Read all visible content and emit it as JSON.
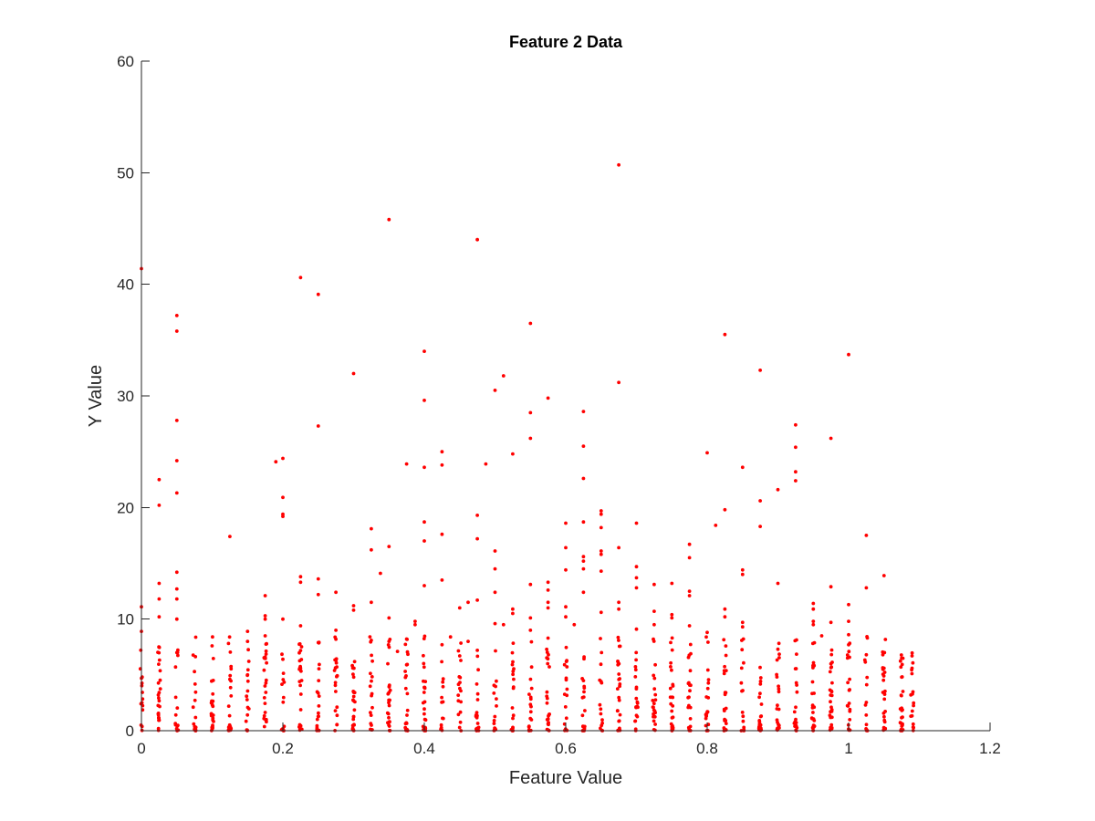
{
  "chart_data": {
    "type": "scatter",
    "title": "Feature 2 Data",
    "xlabel": "Feature Value",
    "ylabel": "Y Value",
    "xlim": [
      0,
      1.2
    ],
    "ylim": [
      0,
      60
    ],
    "xticks": [
      "0",
      "0.2",
      "0.4",
      "0.6",
      "0.8",
      "1",
      "1.2"
    ],
    "yticks": [
      "0",
      "10",
      "20",
      "30",
      "40",
      "50",
      "60"
    ],
    "grid": false,
    "legend": "none",
    "marker_color": "#ff0000",
    "x_columns": [
      0,
      0.025,
      0.05,
      0.075,
      0.1,
      0.125,
      0.15,
      0.175,
      0.2,
      0.225,
      0.25,
      0.275,
      0.3,
      0.325,
      0.35,
      0.375,
      0.4,
      0.425,
      0.45,
      0.475,
      0.5,
      0.525,
      0.55,
      0.575,
      0.6,
      0.625,
      0.65,
      0.675,
      0.7,
      0.725,
      0.75,
      0.775,
      0.8,
      0.825,
      0.85,
      0.875,
      0.9,
      0.925,
      0.95,
      0.975,
      1.0,
      1.025,
      1.05,
      1.075,
      1.09
    ],
    "points": [
      {
        "x": 0,
        "y": 41.4
      },
      {
        "x": 0,
        "y": 11.1
      },
      {
        "x": 0,
        "y": 8.9
      },
      {
        "x": 0,
        "y": 4.7
      },
      {
        "x": 0.025,
        "y": 22.5
      },
      {
        "x": 0.025,
        "y": 20.2
      },
      {
        "x": 0.025,
        "y": 13.2
      },
      {
        "x": 0.025,
        "y": 11.8
      },
      {
        "x": 0.025,
        "y": 10.2
      },
      {
        "x": 0.05,
        "y": 37.2
      },
      {
        "x": 0.05,
        "y": 35.8
      },
      {
        "x": 0.05,
        "y": 27.8
      },
      {
        "x": 0.05,
        "y": 24.2
      },
      {
        "x": 0.05,
        "y": 21.3
      },
      {
        "x": 0.05,
        "y": 14.2
      },
      {
        "x": 0.05,
        "y": 12.7
      },
      {
        "x": 0.05,
        "y": 11.8
      },
      {
        "x": 0.05,
        "y": 10.0
      },
      {
        "x": 0.05,
        "y": 7.0
      },
      {
        "x": 0.075,
        "y": 5.3
      },
      {
        "x": 0.1,
        "y": 2.6
      },
      {
        "x": 0.125,
        "y": 17.4
      },
      {
        "x": 0.125,
        "y": 4.6
      },
      {
        "x": 0.15,
        "y": 8.9
      },
      {
        "x": 0.15,
        "y": 8.0
      },
      {
        "x": 0.15,
        "y": 5.0
      },
      {
        "x": 0.175,
        "y": 12.1
      },
      {
        "x": 0.175,
        "y": 10.3
      },
      {
        "x": 0.175,
        "y": 10.0
      },
      {
        "x": 0.175,
        "y": 8.5
      },
      {
        "x": 0.175,
        "y": 6.6
      },
      {
        "x": 0.19,
        "y": 24.1
      },
      {
        "x": 0.2,
        "y": 24.4
      },
      {
        "x": 0.2,
        "y": 20.9
      },
      {
        "x": 0.2,
        "y": 19.4
      },
      {
        "x": 0.2,
        "y": 19.2
      },
      {
        "x": 0.2,
        "y": 10.0
      },
      {
        "x": 0.2,
        "y": 6.4
      },
      {
        "x": 0.225,
        "y": 40.6
      },
      {
        "x": 0.225,
        "y": 13.8
      },
      {
        "x": 0.225,
        "y": 13.3
      },
      {
        "x": 0.225,
        "y": 9.4
      },
      {
        "x": 0.225,
        "y": 5.6
      },
      {
        "x": 0.25,
        "y": 39.1
      },
      {
        "x": 0.25,
        "y": 27.3
      },
      {
        "x": 0.25,
        "y": 13.6
      },
      {
        "x": 0.25,
        "y": 12.2
      },
      {
        "x": 0.25,
        "y": 7.9
      },
      {
        "x": 0.275,
        "y": 12.4
      },
      {
        "x": 0.275,
        "y": 9.0
      },
      {
        "x": 0.275,
        "y": 8.2
      },
      {
        "x": 0.275,
        "y": 6.3
      },
      {
        "x": 0.3,
        "y": 32.0
      },
      {
        "x": 0.3,
        "y": 11.2
      },
      {
        "x": 0.3,
        "y": 10.8
      },
      {
        "x": 0.3,
        "y": 5.6
      },
      {
        "x": 0.325,
        "y": 18.1
      },
      {
        "x": 0.325,
        "y": 16.2
      },
      {
        "x": 0.325,
        "y": 11.5
      },
      {
        "x": 0.325,
        "y": 8.1
      },
      {
        "x": 0.338,
        "y": 14.1
      },
      {
        "x": 0.35,
        "y": 45.8
      },
      {
        "x": 0.35,
        "y": 16.5
      },
      {
        "x": 0.35,
        "y": 10.1
      },
      {
        "x": 0.35,
        "y": 8.0
      },
      {
        "x": 0.362,
        "y": 7.1
      },
      {
        "x": 0.375,
        "y": 23.9
      },
      {
        "x": 0.375,
        "y": 5.9
      },
      {
        "x": 0.387,
        "y": 9.8
      },
      {
        "x": 0.387,
        "y": 9.5
      },
      {
        "x": 0.4,
        "y": 34.0
      },
      {
        "x": 0.4,
        "y": 29.6
      },
      {
        "x": 0.4,
        "y": 23.6
      },
      {
        "x": 0.4,
        "y": 18.7
      },
      {
        "x": 0.4,
        "y": 17.0
      },
      {
        "x": 0.4,
        "y": 13.0
      },
      {
        "x": 0.425,
        "y": 25.0
      },
      {
        "x": 0.425,
        "y": 23.8
      },
      {
        "x": 0.425,
        "y": 17.6
      },
      {
        "x": 0.425,
        "y": 13.5
      },
      {
        "x": 0.425,
        "y": 7.7
      },
      {
        "x": 0.437,
        "y": 8.4
      },
      {
        "x": 0.45,
        "y": 11.0
      },
      {
        "x": 0.45,
        "y": 6.7
      },
      {
        "x": 0.462,
        "y": 11.5
      },
      {
        "x": 0.462,
        "y": 8.0
      },
      {
        "x": 0.475,
        "y": 44.0
      },
      {
        "x": 0.475,
        "y": 19.3
      },
      {
        "x": 0.475,
        "y": 17.2
      },
      {
        "x": 0.475,
        "y": 11.7
      },
      {
        "x": 0.475,
        "y": 7.2
      },
      {
        "x": 0.487,
        "y": 23.9
      },
      {
        "x": 0.5,
        "y": 30.5
      },
      {
        "x": 0.5,
        "y": 16.1
      },
      {
        "x": 0.5,
        "y": 14.5
      },
      {
        "x": 0.5,
        "y": 12.4
      },
      {
        "x": 0.5,
        "y": 9.6
      },
      {
        "x": 0.512,
        "y": 31.8
      },
      {
        "x": 0.512,
        "y": 9.5
      },
      {
        "x": 0.525,
        "y": 24.8
      },
      {
        "x": 0.525,
        "y": 10.9
      },
      {
        "x": 0.525,
        "y": 10.5
      },
      {
        "x": 0.55,
        "y": 36.5
      },
      {
        "x": 0.55,
        "y": 28.5
      },
      {
        "x": 0.55,
        "y": 26.2
      },
      {
        "x": 0.55,
        "y": 13.1
      },
      {
        "x": 0.55,
        "y": 10.1
      },
      {
        "x": 0.55,
        "y": 9.0
      },
      {
        "x": 0.575,
        "y": 29.8
      },
      {
        "x": 0.575,
        "y": 13.3
      },
      {
        "x": 0.575,
        "y": 12.6
      },
      {
        "x": 0.575,
        "y": 11.5
      },
      {
        "x": 0.575,
        "y": 11.0
      },
      {
        "x": 0.575,
        "y": 8.3
      },
      {
        "x": 0.6,
        "y": 18.6
      },
      {
        "x": 0.6,
        "y": 16.4
      },
      {
        "x": 0.6,
        "y": 14.4
      },
      {
        "x": 0.6,
        "y": 11.1
      },
      {
        "x": 0.6,
        "y": 10.2
      },
      {
        "x": 0.612,
        "y": 9.5
      },
      {
        "x": 0.625,
        "y": 28.6
      },
      {
        "x": 0.625,
        "y": 25.5
      },
      {
        "x": 0.625,
        "y": 22.6
      },
      {
        "x": 0.625,
        "y": 18.7
      },
      {
        "x": 0.625,
        "y": 15.6
      },
      {
        "x": 0.625,
        "y": 15.2
      },
      {
        "x": 0.625,
        "y": 14.5
      },
      {
        "x": 0.625,
        "y": 12.4
      },
      {
        "x": 0.65,
        "y": 19.7
      },
      {
        "x": 0.65,
        "y": 19.4
      },
      {
        "x": 0.65,
        "y": 18.2
      },
      {
        "x": 0.65,
        "y": 16.1
      },
      {
        "x": 0.65,
        "y": 15.8
      },
      {
        "x": 0.65,
        "y": 14.3
      },
      {
        "x": 0.65,
        "y": 10.6
      },
      {
        "x": 0.675,
        "y": 50.7
      },
      {
        "x": 0.675,
        "y": 31.2
      },
      {
        "x": 0.675,
        "y": 16.4
      },
      {
        "x": 0.675,
        "y": 11.5
      },
      {
        "x": 0.675,
        "y": 10.9
      },
      {
        "x": 0.7,
        "y": 18.6
      },
      {
        "x": 0.7,
        "y": 14.7
      },
      {
        "x": 0.7,
        "y": 13.7
      },
      {
        "x": 0.7,
        "y": 12.8
      },
      {
        "x": 0.7,
        "y": 9.1
      },
      {
        "x": 0.725,
        "y": 13.1
      },
      {
        "x": 0.725,
        "y": 10.7
      },
      {
        "x": 0.725,
        "y": 9.5
      },
      {
        "x": 0.75,
        "y": 13.2
      },
      {
        "x": 0.75,
        "y": 10.4
      },
      {
        "x": 0.75,
        "y": 10.1
      },
      {
        "x": 0.775,
        "y": 16.7
      },
      {
        "x": 0.775,
        "y": 15.5
      },
      {
        "x": 0.775,
        "y": 12.5
      },
      {
        "x": 0.775,
        "y": 12.1
      },
      {
        "x": 0.775,
        "y": 9.4
      },
      {
        "x": 0.8,
        "y": 24.9
      },
      {
        "x": 0.8,
        "y": 8.8
      },
      {
        "x": 0.812,
        "y": 18.4
      },
      {
        "x": 0.825,
        "y": 35.5
      },
      {
        "x": 0.825,
        "y": 19.8
      },
      {
        "x": 0.825,
        "y": 10.9
      },
      {
        "x": 0.825,
        "y": 10.2
      },
      {
        "x": 0.85,
        "y": 23.6
      },
      {
        "x": 0.85,
        "y": 14.4
      },
      {
        "x": 0.85,
        "y": 14.0
      },
      {
        "x": 0.85,
        "y": 9.7
      },
      {
        "x": 0.85,
        "y": 9.3
      },
      {
        "x": 0.875,
        "y": 32.3
      },
      {
        "x": 0.875,
        "y": 20.6
      },
      {
        "x": 0.875,
        "y": 18.3
      },
      {
        "x": 0.9,
        "y": 21.6
      },
      {
        "x": 0.9,
        "y": 13.2
      },
      {
        "x": 0.9,
        "y": 7.3
      },
      {
        "x": 0.925,
        "y": 27.4
      },
      {
        "x": 0.925,
        "y": 25.4
      },
      {
        "x": 0.925,
        "y": 23.2
      },
      {
        "x": 0.925,
        "y": 22.4
      },
      {
        "x": 0.95,
        "y": 11.4
      },
      {
        "x": 0.95,
        "y": 10.9
      },
      {
        "x": 0.95,
        "y": 9.8
      },
      {
        "x": 0.95,
        "y": 9.5
      },
      {
        "x": 0.962,
        "y": 8.5
      },
      {
        "x": 0.975,
        "y": 26.2
      },
      {
        "x": 0.975,
        "y": 12.9
      },
      {
        "x": 0.975,
        "y": 9.7
      },
      {
        "x": 0.975,
        "y": 6.0
      },
      {
        "x": 1.0,
        "y": 33.7
      },
      {
        "x": 1.0,
        "y": 11.3
      },
      {
        "x": 1.0,
        "y": 9.8
      },
      {
        "x": 1.0,
        "y": 8.6
      },
      {
        "x": 1.0,
        "y": 7.7
      },
      {
        "x": 1.025,
        "y": 17.5
      },
      {
        "x": 1.025,
        "y": 12.8
      },
      {
        "x": 1.025,
        "y": 6.8
      },
      {
        "x": 1.05,
        "y": 13.9
      },
      {
        "x": 1.05,
        "y": 5.6
      },
      {
        "x": 1.075,
        "y": 6.5
      },
      {
        "x": 1.075,
        "y": 4.8
      },
      {
        "x": 1.088,
        "y": 1.3
      }
    ]
  }
}
